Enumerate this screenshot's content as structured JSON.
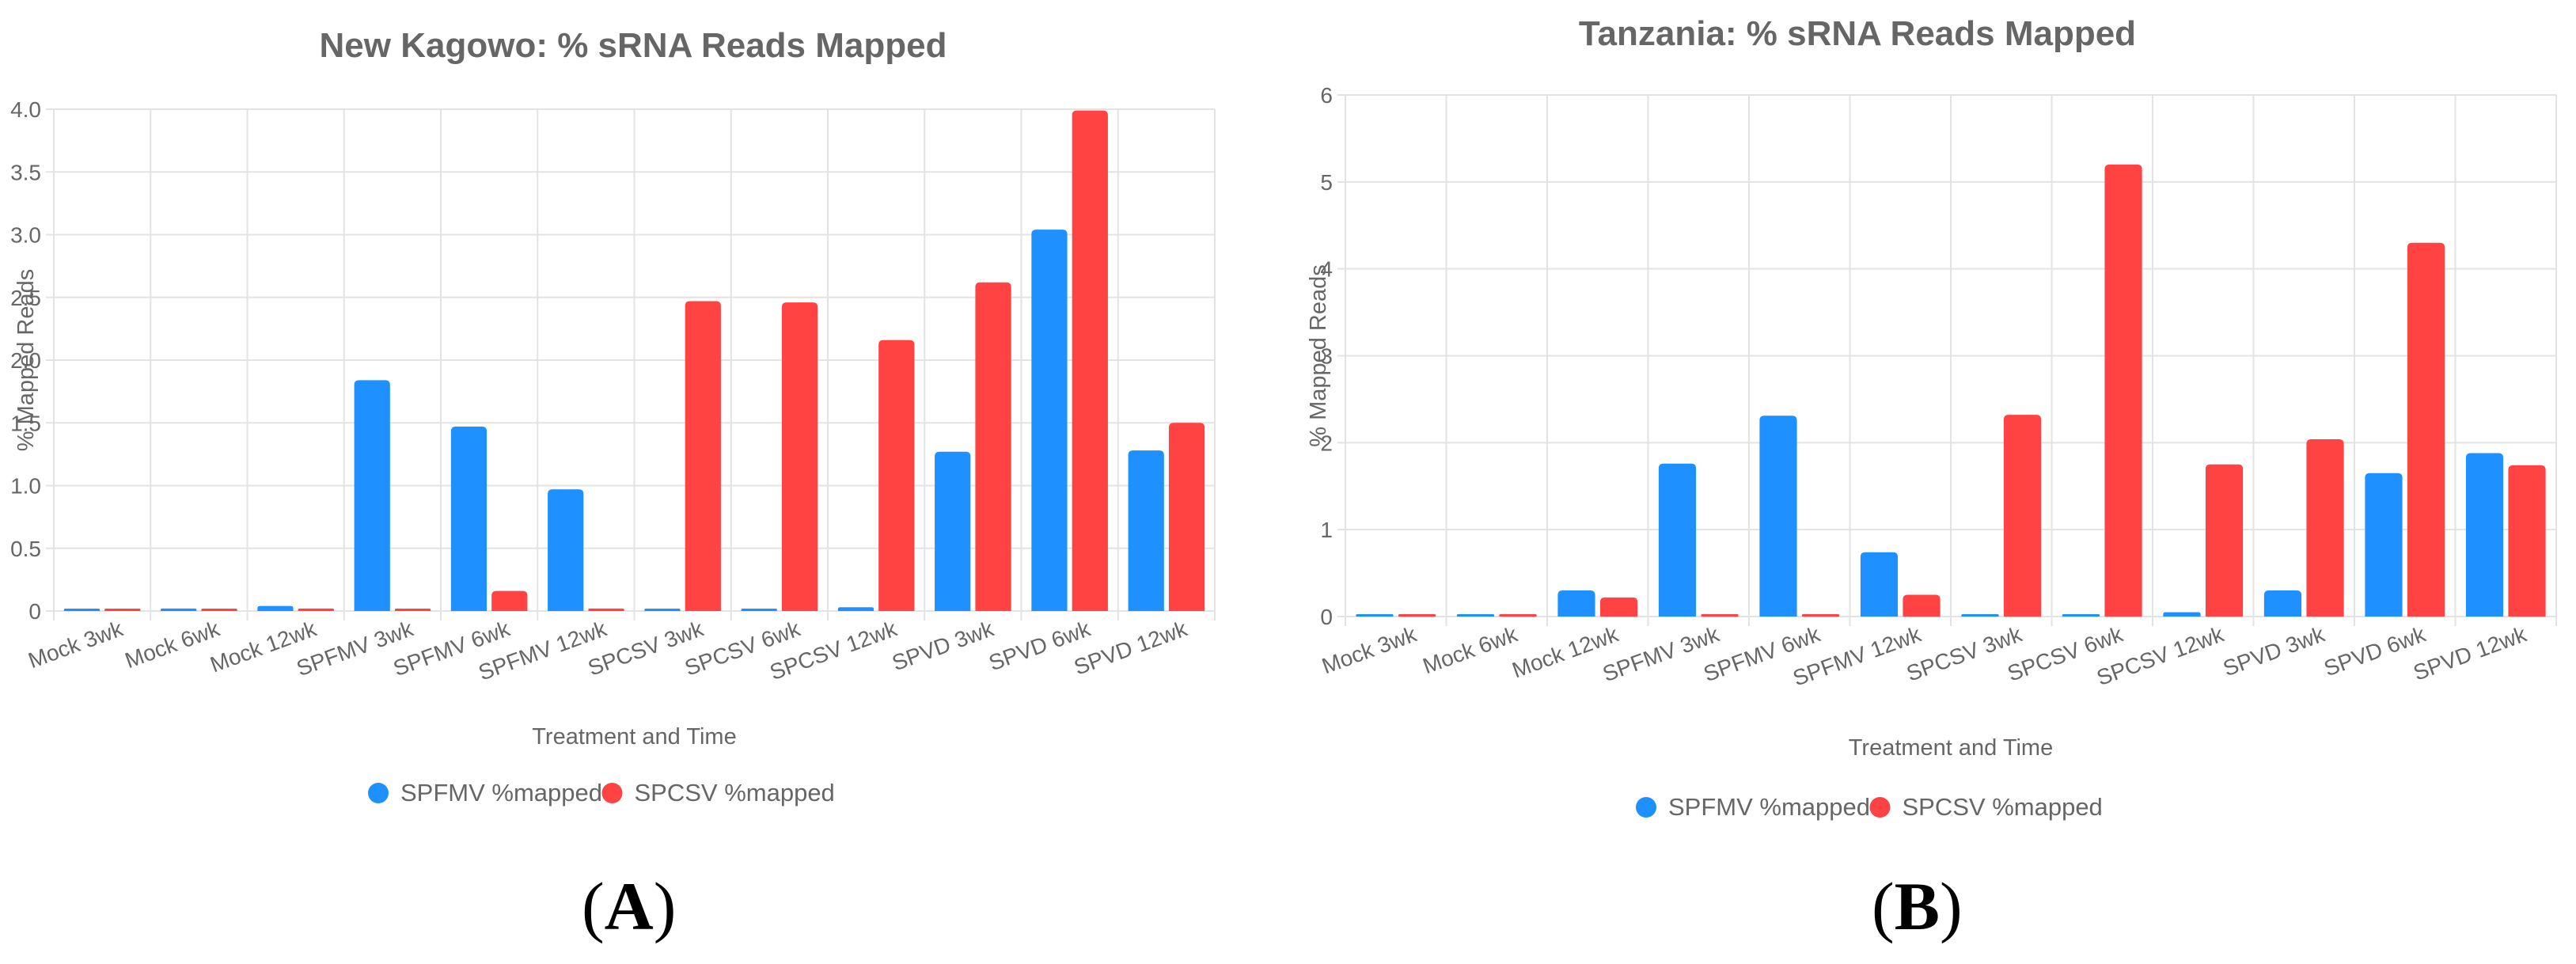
{
  "panels": [
    {
      "letter": "A",
      "open": "(",
      "close": ")"
    },
    {
      "letter": "B",
      "open": "(",
      "close": ")"
    }
  ],
  "colors": {
    "spfmv": "#1e90ff",
    "spcsv": "#ff4242",
    "grid": "#e3e3e3",
    "text": "#666666"
  },
  "chart_data": [
    {
      "type": "bar",
      "title": "New Kagowo: % sRNA Reads Mapped",
      "xlabel": "Treatment and Time",
      "ylabel": "% Mapped Reads",
      "ylim": [
        0,
        4.0
      ],
      "yticks": [
        "0",
        "0.5",
        "1.0",
        "1.5",
        "2.0",
        "2.5",
        "3.0",
        "3.5",
        "4.0"
      ],
      "ytick_values": [
        0,
        0.5,
        1.0,
        1.5,
        2.0,
        2.5,
        3.0,
        3.5,
        4.0
      ],
      "categories": [
        "Mock 3wk",
        "Mock 6wk",
        "Mock 12wk",
        "SPFMV 3wk",
        "SPFMV 6wk",
        "SPFMV 12wk",
        "SPCSV 3wk",
        "SPCSV 6wk",
        "SPCSV 12wk",
        "SPVD 3wk",
        "SPVD 6wk",
        "SPVD 12wk"
      ],
      "series": [
        {
          "name": "SPFMV %mapped",
          "values": [
            0.01,
            0.02,
            0.04,
            1.84,
            1.47,
            0.97,
            0.01,
            0.01,
            0.03,
            1.27,
            3.04,
            1.28
          ]
        },
        {
          "name": "SPCSV %mapped",
          "values": [
            0.01,
            0.01,
            0.02,
            0.01,
            0.16,
            0.02,
            2.47,
            2.46,
            2.16,
            2.62,
            3.99,
            1.5
          ]
        }
      ],
      "grid": true,
      "legend": "bottom-center"
    },
    {
      "type": "bar",
      "title": "Tanzania: % sRNA Reads Mapped",
      "xlabel": "Treatment and Time",
      "ylabel": "% Mapped Reads",
      "ylim": [
        0,
        6
      ],
      "yticks": [
        "0",
        "1",
        "2",
        "3",
        "4",
        "5",
        "6"
      ],
      "ytick_values": [
        0,
        1,
        2,
        3,
        4,
        5,
        6
      ],
      "categories": [
        "Mock 3wk",
        "Mock 6wk",
        "Mock 12wk",
        "SPFMV 3wk",
        "SPFMV 6wk",
        "SPFMV 12wk",
        "SPCSV 3wk",
        "SPCSV 6wk",
        "SPCSV 12wk",
        "SPVD 3wk",
        "SPVD 6wk",
        "SPVD 12wk"
      ],
      "series": [
        {
          "name": "SPFMV %mapped",
          "values": [
            0.01,
            0.01,
            0.3,
            1.76,
            2.31,
            0.74,
            0.01,
            0.02,
            0.05,
            0.3,
            1.65,
            1.88
          ]
        },
        {
          "name": "SPCSV %mapped",
          "values": [
            0.01,
            0.01,
            0.22,
            0.01,
            0.01,
            0.25,
            2.32,
            5.2,
            1.75,
            2.04,
            4.3,
            1.74
          ]
        }
      ],
      "grid": true,
      "legend": "bottom-center"
    }
  ]
}
